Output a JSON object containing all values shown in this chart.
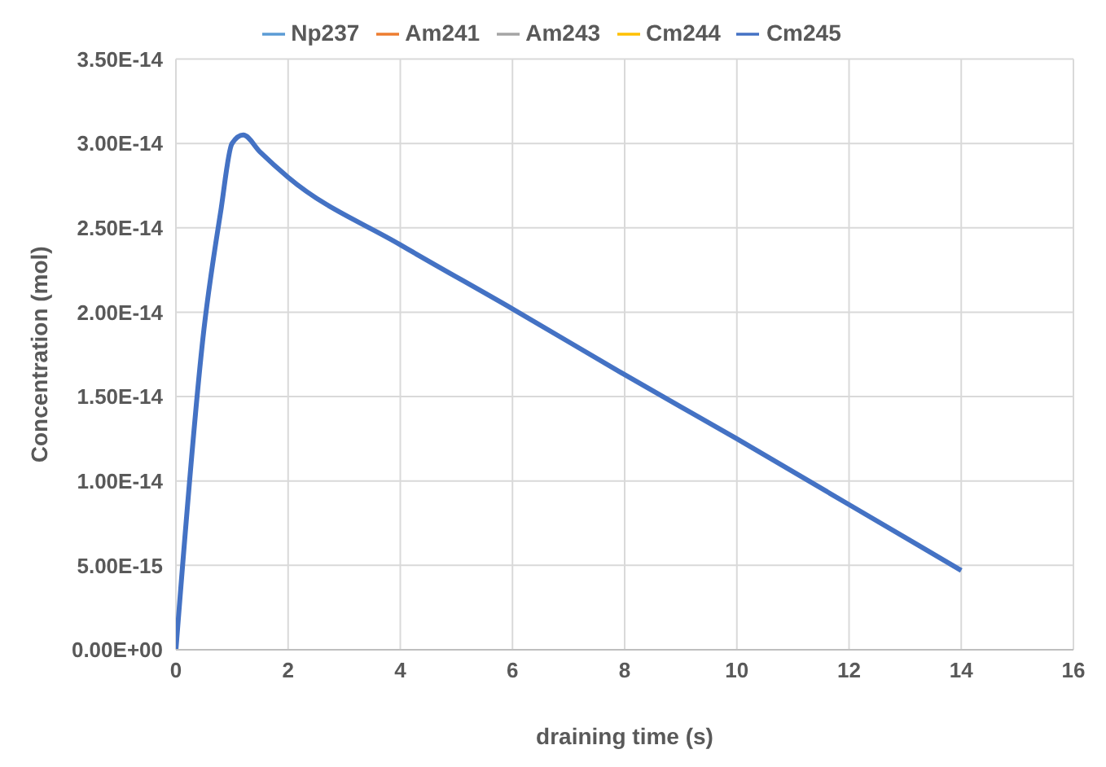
{
  "chart_data": {
    "type": "line",
    "xlabel": "draining time (s)",
    "ylabel": "Concentration (mol)",
    "xlim": [
      0,
      16
    ],
    "xticks": [
      0,
      2,
      4,
      6,
      8,
      10,
      12,
      14,
      16
    ],
    "ylim": [
      0,
      3.5e-14
    ],
    "yticks": [
      {
        "value": 0,
        "label": "0.00E+00"
      },
      {
        "value": 5e-15,
        "label": "5.00E-15"
      },
      {
        "value": 1e-14,
        "label": "1.00E-14"
      },
      {
        "value": 1.5e-14,
        "label": "1.50E-14"
      },
      {
        "value": 2e-14,
        "label": "2.00E-14"
      },
      {
        "value": 2.5e-14,
        "label": "2.50E-14"
      },
      {
        "value": 3e-14,
        "label": "3.00E-14"
      },
      {
        "value": 3.5e-14,
        "label": "3.50E-14"
      }
    ],
    "grid": true,
    "legend": "top",
    "marker": "none",
    "line_style": "solid",
    "x": [
      0,
      0.5,
      0.8,
      1,
      1.2,
      1.5,
      2,
      4,
      6,
      8,
      10,
      12,
      14
    ],
    "series": [
      {
        "name": "Np237",
        "color": "#5b9bd5",
        "values": [
          null,
          null,
          null,
          null,
          null,
          null,
          null,
          null,
          null,
          null,
          null,
          null,
          null
        ]
      },
      {
        "name": "Am241",
        "color": "#ed7d31",
        "values": [
          null,
          null,
          null,
          null,
          null,
          null,
          null,
          null,
          null,
          null,
          null,
          null,
          null
        ]
      },
      {
        "name": "Am243",
        "color": "#a5a5a5",
        "values": [
          null,
          null,
          null,
          null,
          null,
          null,
          null,
          null,
          null,
          null,
          null,
          null,
          null
        ]
      },
      {
        "name": "Cm244",
        "color": "#ffc000",
        "values": [
          null,
          null,
          null,
          null,
          null,
          null,
          null,
          null,
          null,
          null,
          null,
          null,
          null
        ]
      },
      {
        "name": "Cm245",
        "color": "#4472c4",
        "values": [
          0,
          1.9e-14,
          2.6e-14,
          3e-14,
          3.05e-14,
          2.95e-14,
          2.8e-14,
          2.4e-14,
          2.02e-14,
          1.63e-14,
          1.25e-14,
          8.6e-15,
          4.7e-15
        ]
      }
    ]
  }
}
